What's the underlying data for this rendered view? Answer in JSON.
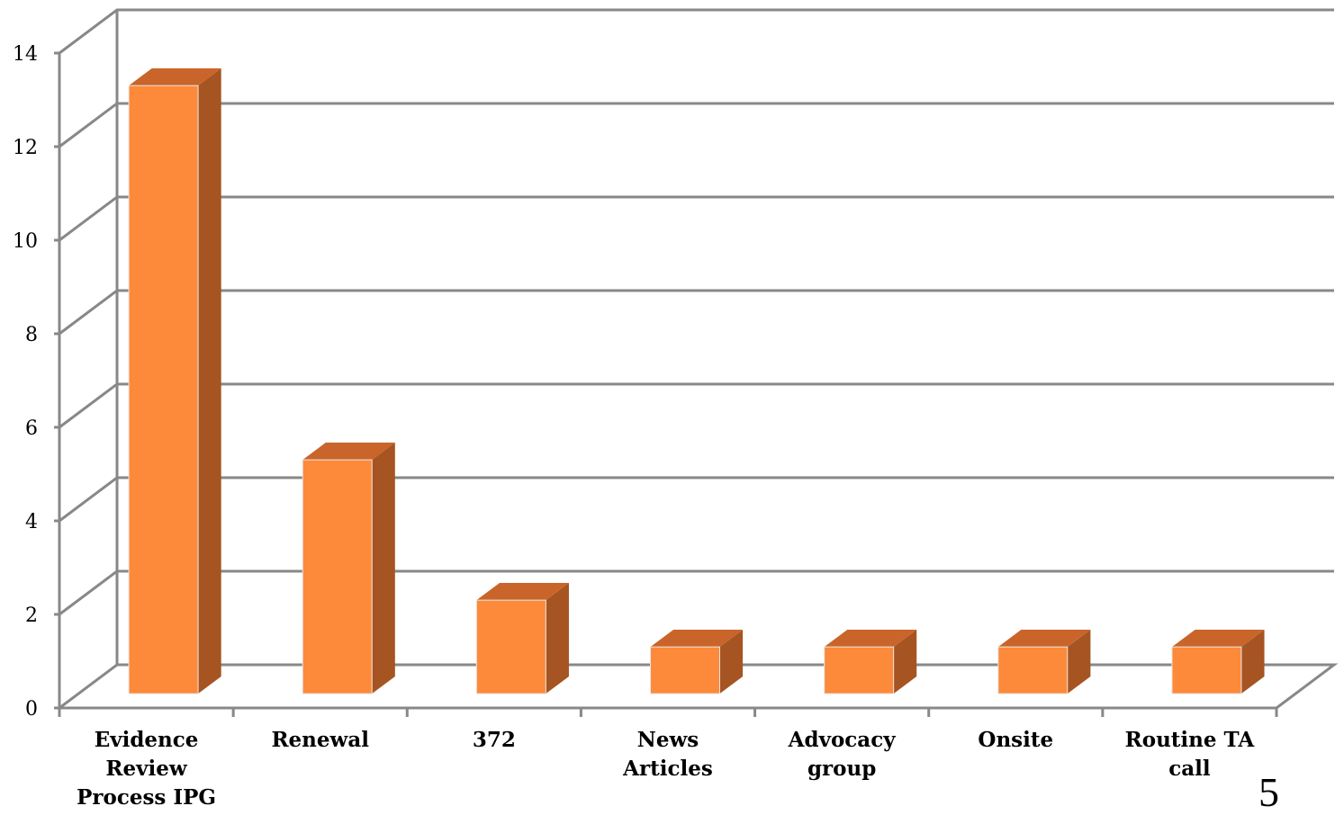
{
  "chart_data": {
    "type": "bar",
    "style": "3d",
    "title": "",
    "xlabel": "",
    "ylabel": "",
    "categories": [
      [
        "Evidence",
        "Review",
        "Process IPG"
      ],
      [
        "Renewal"
      ],
      [
        "372"
      ],
      [
        "News",
        "Articles"
      ],
      [
        "Advocacy",
        "group"
      ],
      [
        "Onsite"
      ],
      [
        "Routine TA",
        "call"
      ]
    ],
    "values": [
      13,
      5,
      2,
      1,
      1,
      1,
      1
    ],
    "ylim": [
      0,
      14
    ],
    "yticks": [
      "0",
      "2",
      "4",
      "6",
      "8",
      "10",
      "12",
      "14"
    ],
    "grid": true,
    "legend": "none"
  },
  "colors": {
    "bar_front": "#fd8a3a",
    "bar_side": "#a65422",
    "bar_top": "#c9652a",
    "grid": "#888888"
  },
  "page_number": "5"
}
